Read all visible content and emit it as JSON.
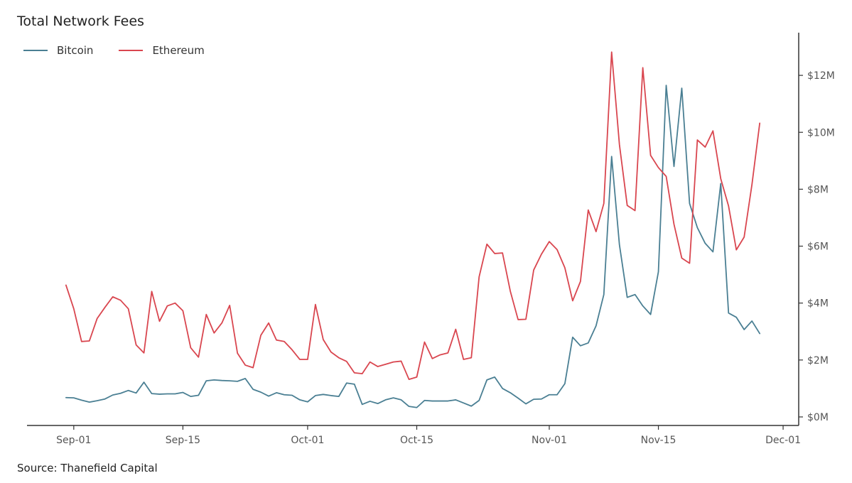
{
  "chart_data": {
    "type": "line",
    "title": "Total Network Fees",
    "source": "Source: Thanefield Capital",
    "xlabel": "",
    "ylabel": "",
    "x_range": [
      "2020-08-26",
      "2020-12-03"
    ],
    "x_ticks": [
      {
        "date": "2020-09-01",
        "label": "Sep-01"
      },
      {
        "date": "2020-09-15",
        "label": "Sep-15"
      },
      {
        "date": "2020-10-01",
        "label": "Oct-01"
      },
      {
        "date": "2020-10-15",
        "label": "Oct-15"
      },
      {
        "date": "2020-11-01",
        "label": "Nov-01"
      },
      {
        "date": "2020-11-15",
        "label": "Nov-15"
      },
      {
        "date": "2020-12-01",
        "label": "Dec-01"
      }
    ],
    "y_ticks": [
      {
        "value": 0,
        "label": "$0M"
      },
      {
        "value": 2,
        "label": "$2M"
      },
      {
        "value": 4,
        "label": "$4M"
      },
      {
        "value": 6,
        "label": "$6M"
      },
      {
        "value": 8,
        "label": "$8M"
      },
      {
        "value": 10,
        "label": "$10M"
      },
      {
        "value": 12,
        "label": "$12M"
      }
    ],
    "ylim": [
      -0.3,
      13.5
    ],
    "y_axis_side": "right",
    "grid": false,
    "legend_position": "top-left",
    "x": [
      "2020-08-31",
      "2020-09-01",
      "2020-09-02",
      "2020-09-03",
      "2020-09-04",
      "2020-09-05",
      "2020-09-06",
      "2020-09-07",
      "2020-09-08",
      "2020-09-09",
      "2020-09-10",
      "2020-09-11",
      "2020-09-12",
      "2020-09-13",
      "2020-09-14",
      "2020-09-15",
      "2020-09-16",
      "2020-09-17",
      "2020-09-18",
      "2020-09-19",
      "2020-09-20",
      "2020-09-21",
      "2020-09-22",
      "2020-09-23",
      "2020-09-24",
      "2020-09-25",
      "2020-09-26",
      "2020-09-27",
      "2020-09-28",
      "2020-09-29",
      "2020-09-30",
      "2020-10-01",
      "2020-10-02",
      "2020-10-03",
      "2020-10-04",
      "2020-10-05",
      "2020-10-06",
      "2020-10-07",
      "2020-10-08",
      "2020-10-09",
      "2020-10-10",
      "2020-10-11",
      "2020-10-12",
      "2020-10-13",
      "2020-10-14",
      "2020-10-15",
      "2020-10-16",
      "2020-10-17",
      "2020-10-18",
      "2020-10-19",
      "2020-10-20",
      "2020-10-21",
      "2020-10-22",
      "2020-10-23",
      "2020-10-24",
      "2020-10-25",
      "2020-10-26",
      "2020-10-27",
      "2020-10-28",
      "2020-10-29",
      "2020-10-30",
      "2020-10-31",
      "2020-11-01",
      "2020-11-02",
      "2020-11-03",
      "2020-11-04",
      "2020-11-05",
      "2020-11-06",
      "2020-11-07",
      "2020-11-08",
      "2020-11-09",
      "2020-11-10",
      "2020-11-11",
      "2020-11-12",
      "2020-11-13",
      "2020-11-14",
      "2020-11-15",
      "2020-11-16",
      "2020-11-17",
      "2020-11-18",
      "2020-11-19",
      "2020-11-20",
      "2020-11-21",
      "2020-11-22",
      "2020-11-23",
      "2020-11-24",
      "2020-11-25",
      "2020-11-26",
      "2020-11-27",
      "2020-11-28"
    ],
    "series": [
      {
        "name": "Bitcoin",
        "color": "#4a7f93",
        "values": [
          0.68,
          0.67,
          0.59,
          0.52,
          0.57,
          0.63,
          0.77,
          0.83,
          0.93,
          0.84,
          1.22,
          0.82,
          0.8,
          0.81,
          0.81,
          0.86,
          0.72,
          0.76,
          1.27,
          1.3,
          1.28,
          1.27,
          1.25,
          1.35,
          0.97,
          0.87,
          0.73,
          0.85,
          0.78,
          0.76,
          0.6,
          0.53,
          0.75,
          0.79,
          0.75,
          0.72,
          1.19,
          1.15,
          0.44,
          0.55,
          0.47,
          0.6,
          0.67,
          0.6,
          0.37,
          0.33,
          0.58,
          0.56,
          0.56,
          0.56,
          0.6,
          0.49,
          0.38,
          0.58,
          1.3,
          1.4,
          1.0,
          0.85,
          0.66,
          0.46,
          0.62,
          0.63,
          0.78,
          0.78,
          1.17,
          2.8,
          2.5,
          2.6,
          3.2,
          4.3,
          9.15,
          6.05,
          4.2,
          4.3,
          3.9,
          3.6,
          5.1,
          11.65,
          8.8,
          11.55,
          7.5,
          6.65,
          6.1,
          5.8,
          8.2,
          3.65,
          3.5,
          3.07,
          3.37,
          2.93
        ]
      },
      {
        "name": "Ethereum",
        "color": "#d9464f",
        "values": [
          4.63,
          3.8,
          2.65,
          2.67,
          3.46,
          3.85,
          4.22,
          4.1,
          3.8,
          2.53,
          2.25,
          4.41,
          3.36,
          3.9,
          4.0,
          3.73,
          2.43,
          2.1,
          3.6,
          2.95,
          3.3,
          3.92,
          2.24,
          1.82,
          1.73,
          2.87,
          3.3,
          2.7,
          2.65,
          2.36,
          2.02,
          2.02,
          3.95,
          2.72,
          2.28,
          2.08,
          1.95,
          1.55,
          1.52,
          1.93,
          1.77,
          1.85,
          1.93,
          1.96,
          1.32,
          1.4,
          2.63,
          2.05,
          2.18,
          2.25,
          3.08,
          2.02,
          2.08,
          4.92,
          6.07,
          5.74,
          5.76,
          4.42,
          3.42,
          3.43,
          5.16,
          5.72,
          6.16,
          5.88,
          5.24,
          4.08,
          4.76,
          7.27,
          6.51,
          7.5,
          12.82,
          9.57,
          7.43,
          7.25,
          12.27,
          9.19,
          8.76,
          8.45,
          6.77,
          5.58,
          5.4,
          9.73,
          9.48,
          10.05,
          8.37,
          7.41,
          5.87,
          6.32,
          8.16,
          10.32
        ]
      }
    ]
  },
  "colors": {
    "axis": "#333333",
    "text": "#555555",
    "background": "#ffffff"
  }
}
